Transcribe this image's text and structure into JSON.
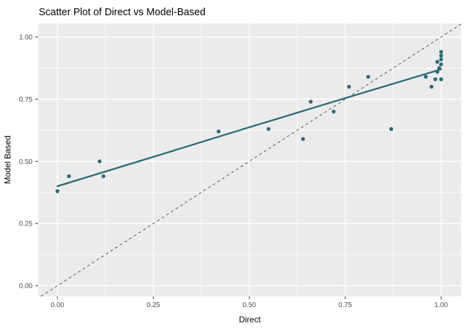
{
  "title": "Scatter Plot of Direct vs Model-Based",
  "chart_data": {
    "type": "scatter",
    "title": "Scatter Plot of Direct vs Model-Based",
    "xlabel": "Direct",
    "ylabel": "Model Based",
    "xlim": [
      -0.05,
      1.05
    ],
    "ylim": [
      -0.045,
      1.055
    ],
    "grid": "on",
    "legend": "none",
    "x_ticks": [
      {
        "value": 0.0,
        "label": "0.00"
      },
      {
        "value": 0.25,
        "label": "0.25"
      },
      {
        "value": 0.5,
        "label": "0.50"
      },
      {
        "value": 0.75,
        "label": "0.75"
      },
      {
        "value": 1.0,
        "label": "1.00"
      }
    ],
    "y_ticks": [
      {
        "value": 0.0,
        "label": "0.00"
      },
      {
        "value": 0.25,
        "label": "0.25"
      },
      {
        "value": 0.5,
        "label": "0.50"
      },
      {
        "value": 0.75,
        "label": "0.75"
      },
      {
        "value": 1.0,
        "label": "1.00"
      }
    ],
    "points": [
      [
        0.0,
        0.38
      ],
      [
        0.03,
        0.44
      ],
      [
        0.11,
        0.5
      ],
      [
        0.12,
        0.44
      ],
      [
        0.42,
        0.62
      ],
      [
        0.55,
        0.63
      ],
      [
        0.64,
        0.59
      ],
      [
        0.66,
        0.74
      ],
      [
        0.72,
        0.7
      ],
      [
        0.76,
        0.8
      ],
      [
        0.81,
        0.84
      ],
      [
        0.87,
        0.63
      ],
      [
        0.96,
        0.84
      ],
      [
        0.975,
        0.8
      ],
      [
        0.985,
        0.83
      ],
      [
        1.0,
        0.83
      ],
      [
        0.99,
        0.86
      ],
      [
        0.995,
        0.875
      ],
      [
        1.0,
        0.89
      ],
      [
        0.99,
        0.9
      ],
      [
        1.0,
        0.91
      ],
      [
        1.0,
        0.925
      ],
      [
        1.0,
        0.94
      ]
    ],
    "smooth_line": {
      "label": "linear fit",
      "points": [
        [
          0.0,
          0.4
        ],
        [
          0.25,
          0.518
        ],
        [
          0.5,
          0.637
        ],
        [
          0.75,
          0.754
        ],
        [
          1.0,
          0.87
        ]
      ]
    },
    "identity_line": {
      "label": "y = x",
      "style": "dashed",
      "from": [
        -0.043,
        -0.043
      ],
      "to": [
        1.052,
        1.052
      ]
    },
    "colors": {
      "point": "#2d6a77",
      "smooth": "#2d6a77",
      "identity": "#555555",
      "panel_bg": "#ebebeb",
      "grid_major": "#ffffff",
      "grid_minor": "#ffffff",
      "tick_mark": "#333333",
      "axis_text": "#4d4d4d",
      "title_text": "#000000"
    }
  }
}
